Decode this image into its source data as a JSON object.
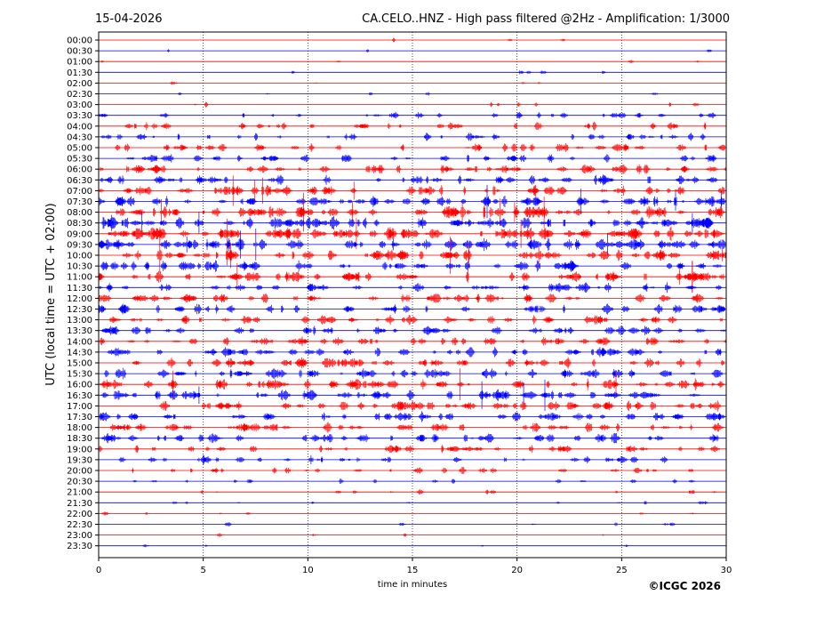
{
  "header": {
    "date": "15-04-2026",
    "title": "CA.CELO..HNZ - High pass filtered @2Hz - Amplification: 1/3000"
  },
  "footer": {
    "copyright": "©ICGC 2026"
  },
  "chart_data": {
    "type": "line",
    "title": "CA.CELO..HNZ - High pass filtered @2Hz - Amplification: 1/3000",
    "xlabel": "time in minutes",
    "ylabel": "UTC (local time = UTC + 02:00)",
    "xlim": [
      0,
      30
    ],
    "x_ticks": [
      "0",
      "5",
      "10",
      "15",
      "20",
      "25",
      "30"
    ],
    "vertical_grid": true,
    "trace_colors": [
      "#ff0000",
      "#0000ff"
    ],
    "rows": [
      {
        "label": "00:00",
        "color": "#ff0000",
        "activity": 0.02
      },
      {
        "label": "00:30",
        "color": "#0000ff",
        "activity": 0.02
      },
      {
        "label": "01:00",
        "color": "#ff0000",
        "activity": 0.03
      },
      {
        "label": "01:30",
        "color": "#0000ff",
        "activity": 0.04
      },
      {
        "label": "02:00",
        "color": "#ff0000",
        "activity": 0.03
      },
      {
        "label": "02:30",
        "color": "#0000ff",
        "activity": 0.04
      },
      {
        "label": "03:00",
        "color": "#ff0000",
        "activity": 0.08
      },
      {
        "label": "03:30",
        "color": "#0000ff",
        "activity": 0.3
      },
      {
        "label": "04:00",
        "color": "#ff0000",
        "activity": 0.35
      },
      {
        "label": "04:30",
        "color": "#0000ff",
        "activity": 0.35
      },
      {
        "label": "05:00",
        "color": "#ff0000",
        "activity": 0.4
      },
      {
        "label": "05:30",
        "color": "#0000ff",
        "activity": 0.4
      },
      {
        "label": "06:00",
        "color": "#ff0000",
        "activity": 0.45
      },
      {
        "label": "06:30",
        "color": "#0000ff",
        "activity": 0.5
      },
      {
        "label": "07:00",
        "color": "#ff0000",
        "activity": 0.6
      },
      {
        "label": "07:30",
        "color": "#0000ff",
        "activity": 0.65
      },
      {
        "label": "08:00",
        "color": "#ff0000",
        "activity": 0.7
      },
      {
        "label": "08:30",
        "color": "#0000ff",
        "activity": 0.75
      },
      {
        "label": "09:00",
        "color": "#ff0000",
        "activity": 0.8
      },
      {
        "label": "09:30",
        "color": "#0000ff",
        "activity": 0.75
      },
      {
        "label": "10:00",
        "color": "#ff0000",
        "activity": 0.65
      },
      {
        "label": "10:30",
        "color": "#0000ff",
        "activity": 0.6
      },
      {
        "label": "11:00",
        "color": "#ff0000",
        "activity": 0.6
      },
      {
        "label": "11:30",
        "color": "#0000ff",
        "activity": 0.5
      },
      {
        "label": "12:00",
        "color": "#ff0000",
        "activity": 0.5
      },
      {
        "label": "12:30",
        "color": "#0000ff",
        "activity": 0.5
      },
      {
        "label": "13:00",
        "color": "#ff0000",
        "activity": 0.45
      },
      {
        "label": "13:30",
        "color": "#0000ff",
        "activity": 0.45
      },
      {
        "label": "14:00",
        "color": "#ff0000",
        "activity": 0.45
      },
      {
        "label": "14:30",
        "color": "#0000ff",
        "activity": 0.5
      },
      {
        "label": "15:00",
        "color": "#ff0000",
        "activity": 0.55
      },
      {
        "label": "15:30",
        "color": "#0000ff",
        "activity": 0.55
      },
      {
        "label": "16:00",
        "color": "#ff0000",
        "activity": 0.6
      },
      {
        "label": "16:30",
        "color": "#0000ff",
        "activity": 0.6
      },
      {
        "label": "17:00",
        "color": "#ff0000",
        "activity": 0.55
      },
      {
        "label": "17:30",
        "color": "#0000ff",
        "activity": 0.5
      },
      {
        "label": "18:00",
        "color": "#ff0000",
        "activity": 0.5
      },
      {
        "label": "18:30",
        "color": "#0000ff",
        "activity": 0.5
      },
      {
        "label": "19:00",
        "color": "#ff0000",
        "activity": 0.4
      },
      {
        "label": "19:30",
        "color": "#0000ff",
        "activity": 0.35
      },
      {
        "label": "20:00",
        "color": "#ff0000",
        "activity": 0.25
      },
      {
        "label": "20:30",
        "color": "#0000ff",
        "activity": 0.15
      },
      {
        "label": "21:00",
        "color": "#ff0000",
        "activity": 0.12
      },
      {
        "label": "21:30",
        "color": "#0000ff",
        "activity": 0.1
      },
      {
        "label": "22:00",
        "color": "#ff0000",
        "activity": 0.06
      },
      {
        "label": "22:30",
        "color": "#0000ff",
        "activity": 0.05
      },
      {
        "label": "23:00",
        "color": "#ff0000",
        "activity": 0.03
      },
      {
        "label": "23:30",
        "color": "#0000ff",
        "activity": 0.03
      }
    ]
  }
}
